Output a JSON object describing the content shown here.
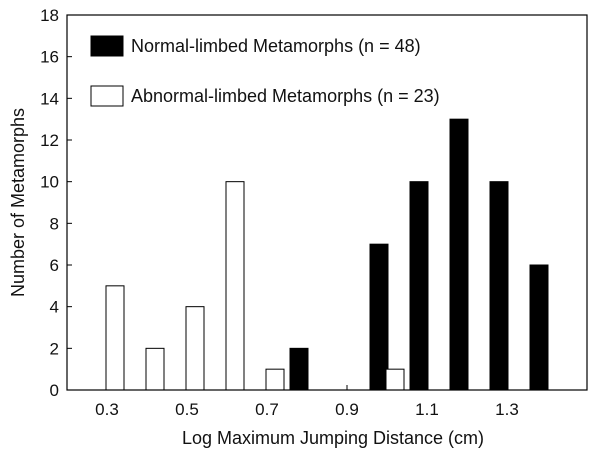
{
  "chart_data": {
    "type": "bar",
    "xlabel": "Log Maximum Jumping Distance (cm)",
    "ylabel": "Number of Metamorphs",
    "xlim": [
      0.2,
      1.5
    ],
    "ylim": [
      0,
      18
    ],
    "xticks": [
      0.3,
      0.5,
      0.7,
      0.9,
      1.1,
      1.3
    ],
    "xtick_labels": [
      "0.3",
      "0.5",
      "0.7",
      "0.9",
      "1.1",
      "1.3"
    ],
    "yticks": [
      0,
      2,
      4,
      6,
      8,
      10,
      12,
      14,
      16,
      18
    ],
    "ytick_labels": [
      "0",
      "2",
      "4",
      "6",
      "8",
      "10",
      "12",
      "14",
      "16",
      "18"
    ],
    "grid": false,
    "legend_position": "top-left",
    "series": [
      {
        "name": "Normal-limbed Metamorphs (n = 48)",
        "fill": "#000000",
        "points": [
          {
            "x": 0.75,
            "y": 2
          },
          {
            "x": 0.95,
            "y": 7
          },
          {
            "x": 1.05,
            "y": 10
          },
          {
            "x": 1.15,
            "y": 13
          },
          {
            "x": 1.25,
            "y": 10
          },
          {
            "x": 1.35,
            "y": 6
          }
        ]
      },
      {
        "name": "Abnormal-limbed Metamorphs (n = 23)",
        "fill": "#ffffff",
        "points": [
          {
            "x": 0.35,
            "y": 5
          },
          {
            "x": 0.45,
            "y": 2
          },
          {
            "x": 0.55,
            "y": 4
          },
          {
            "x": 0.65,
            "y": 10
          },
          {
            "x": 0.75,
            "y": 1
          },
          {
            "x": 1.05,
            "y": 1
          }
        ]
      }
    ]
  }
}
